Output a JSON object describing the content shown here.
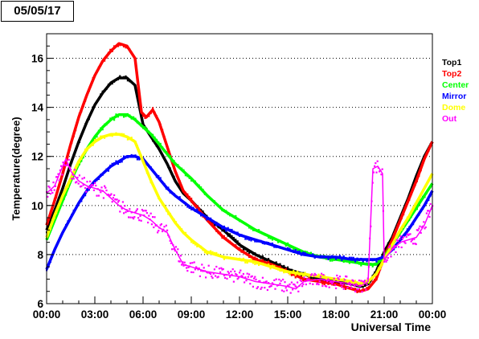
{
  "title": "05/05/17",
  "chart_data": {
    "type": "scatter",
    "title": "05/05/17",
    "xlabel": "Universal Time",
    "ylabel": "Temperature(degree)",
    "xlim": [
      0,
      24
    ],
    "ylim": [
      6,
      17
    ],
    "x_unit": "hours (UT)",
    "x_ticks": [
      0,
      3,
      6,
      9,
      12,
      15,
      18,
      21,
      24
    ],
    "x_tick_labels": [
      "00:00",
      "03:00",
      "06:00",
      "09:00",
      "12:00",
      "15:00",
      "18:00",
      "21:00",
      "00:00"
    ],
    "y_ticks": [
      6,
      8,
      10,
      12,
      14,
      16
    ],
    "y_tick_labels": [
      "6",
      "8",
      "10",
      "12",
      "14",
      "16"
    ],
    "grid": "y-dotted",
    "legend_position": "right",
    "series": [
      {
        "name": "Top1",
        "color": "#000000",
        "x": [
          0,
          0.5,
          1,
          1.5,
          2,
          2.5,
          3,
          3.5,
          4,
          4.5,
          5,
          5.5,
          6,
          6.5,
          7,
          7.5,
          8,
          8.5,
          9,
          10,
          11,
          12,
          13,
          14,
          15,
          16,
          17,
          18,
          19,
          19.5,
          20,
          20.5,
          21,
          21.5,
          22,
          22.5,
          23,
          23.5,
          24
        ],
        "y": [
          9.0,
          9.8,
          10.7,
          11.7,
          12.6,
          13.4,
          14.1,
          14.6,
          15.0,
          15.2,
          15.2,
          14.9,
          13.3,
          12.8,
          12.3,
          11.7,
          11.0,
          10.5,
          10.2,
          9.5,
          9.0,
          8.4,
          8.0,
          7.7,
          7.4,
          7.2,
          7.0,
          6.9,
          6.8,
          6.7,
          6.8,
          7.3,
          8.1,
          8.7,
          9.5,
          10.3,
          11.2,
          12.0,
          12.6
        ]
      },
      {
        "name": "Top2",
        "color": "#ff0000",
        "x": [
          0,
          0.5,
          1,
          1.5,
          2,
          2.5,
          3,
          3.5,
          4,
          4.5,
          5,
          5.5,
          5.9,
          6.2,
          6.6,
          7,
          7.5,
          8,
          8.5,
          9,
          10,
          11,
          12,
          13,
          14,
          15,
          16,
          17,
          18,
          19,
          19.5,
          20,
          20.5,
          21,
          21.5,
          22,
          22.5,
          23,
          23.5,
          24
        ],
        "y": [
          9.2,
          10.2,
          11.3,
          12.5,
          13.6,
          14.5,
          15.3,
          15.9,
          16.3,
          16.6,
          16.5,
          16.0,
          13.8,
          13.6,
          13.9,
          13.4,
          12.4,
          11.4,
          10.6,
          10.2,
          9.4,
          8.7,
          8.2,
          7.8,
          7.6,
          7.3,
          7.0,
          6.9,
          6.8,
          6.6,
          6.5,
          6.6,
          7.0,
          7.9,
          8.6,
          9.4,
          10.2,
          11.0,
          11.9,
          12.6
        ]
      },
      {
        "name": "Center",
        "color": "#00ff00",
        "x": [
          0,
          0.5,
          1,
          1.5,
          2,
          2.5,
          3,
          3.5,
          4,
          4.5,
          5,
          5.5,
          6,
          6.5,
          7,
          7.5,
          8,
          9,
          10,
          11,
          12,
          13,
          14,
          15,
          16,
          17,
          18,
          19,
          20,
          20.5,
          21,
          21.5,
          22,
          22.5,
          23,
          23.5,
          24
        ],
        "y": [
          8.6,
          9.4,
          10.2,
          11.0,
          11.7,
          12.3,
          12.8,
          13.2,
          13.5,
          13.7,
          13.7,
          13.5,
          13.2,
          12.9,
          12.5,
          12.1,
          11.7,
          11.1,
          10.4,
          9.8,
          9.4,
          9.0,
          8.7,
          8.4,
          8.1,
          7.9,
          7.8,
          7.7,
          7.6,
          7.6,
          7.9,
          8.4,
          8.9,
          9.4,
          9.9,
          10.4,
          10.9
        ]
      },
      {
        "name": "Mirror",
        "color": "#0000ff",
        "x": [
          0,
          0.5,
          1,
          1.5,
          2,
          2.5,
          3,
          3.5,
          4,
          4.5,
          5,
          5.5,
          6,
          6.5,
          7,
          7.5,
          8,
          9,
          10,
          11,
          12,
          13,
          14,
          15,
          16,
          17,
          18,
          19,
          20,
          20.5,
          21,
          21.5,
          22,
          22.5,
          23,
          23.5,
          24
        ],
        "y": [
          7.4,
          8.2,
          8.9,
          9.5,
          10.1,
          10.6,
          11.0,
          11.3,
          11.6,
          11.8,
          12.0,
          12.0,
          11.9,
          11.5,
          11.1,
          10.7,
          10.4,
          9.9,
          9.5,
          9.1,
          8.8,
          8.6,
          8.4,
          8.2,
          8.0,
          7.9,
          7.9,
          7.8,
          7.8,
          7.8,
          7.9,
          8.2,
          8.6,
          9.0,
          9.5,
          10.0,
          10.6
        ]
      },
      {
        "name": "Dome",
        "color": "#ffff00",
        "x": [
          0,
          0.5,
          1,
          1.5,
          2,
          2.5,
          3,
          3.5,
          4,
          4.5,
          5,
          5.5,
          6,
          6.5,
          7,
          7.5,
          8,
          8.5,
          9,
          10,
          11,
          12,
          13,
          14,
          15,
          16,
          17,
          18,
          19,
          19.5,
          20,
          20.5,
          21,
          21.5,
          22,
          22.5,
          23,
          23.5,
          24
        ],
        "y": [
          8.7,
          9.6,
          10.4,
          11.1,
          11.8,
          12.3,
          12.6,
          12.8,
          12.9,
          12.9,
          12.8,
          12.6,
          11.8,
          11.0,
          10.3,
          9.8,
          9.3,
          8.9,
          8.6,
          8.1,
          7.9,
          7.8,
          7.7,
          7.5,
          7.3,
          7.2,
          7.1,
          7.0,
          6.9,
          6.8,
          6.9,
          7.2,
          7.8,
          8.4,
          9.0,
          9.5,
          10.1,
          10.7,
          11.3
        ]
      },
      {
        "name": "Out",
        "color": "#ff00ff",
        "x": [
          0,
          0.5,
          1,
          1.2,
          1.5,
          2,
          2.5,
          3,
          3.5,
          4,
          4.5,
          5,
          5.5,
          6,
          6.5,
          7,
          7.5,
          8,
          8.5,
          9,
          10,
          11,
          12,
          13,
          14,
          15,
          15.5,
          16,
          17,
          18,
          19,
          19.5,
          20,
          20.3,
          20.6,
          20.9,
          21,
          21.5,
          22,
          22.5,
          23,
          23.5,
          24
        ],
        "y": [
          10.5,
          10.8,
          11.6,
          11.9,
          11.4,
          11.0,
          10.8,
          10.7,
          10.6,
          10.3,
          10.0,
          9.8,
          9.7,
          9.6,
          9.4,
          9.1,
          8.9,
          8.2,
          7.6,
          7.5,
          7.3,
          7.2,
          7.1,
          6.9,
          6.8,
          6.7,
          6.6,
          6.9,
          7.0,
          6.9,
          6.8,
          6.7,
          6.9,
          11.5,
          11.6,
          11.3,
          7.8,
          8.2,
          8.5,
          8.6,
          8.7,
          9.2,
          10.0
        ]
      }
    ]
  }
}
